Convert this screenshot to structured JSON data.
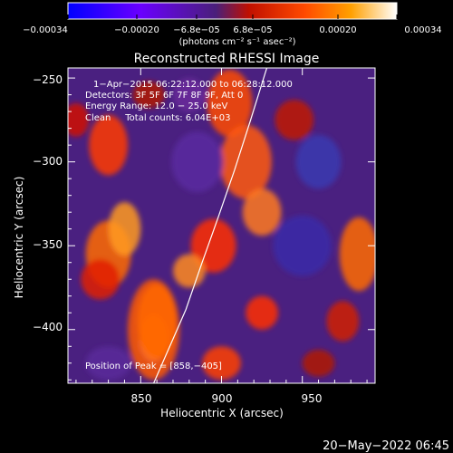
{
  "chart_data": {
    "type": "heatmap",
    "title": "Reconstructed RHESSI Image",
    "xlabel": "Heliocentric X (arcsec)",
    "ylabel": "Heliocentric Y (arcsec)",
    "xlim": [
      805,
      995
    ],
    "ylim": [
      -432,
      -244
    ],
    "x_ticks": [
      850,
      900,
      950
    ],
    "x_tick_labels": [
      "850",
      "900",
      "950"
    ],
    "y_ticks": [
      -250,
      -300,
      -350,
      -400
    ],
    "y_tick_labels": [
      "−250",
      "−300",
      "−350",
      "−400"
    ],
    "colorbar": {
      "range": [
        -0.00034,
        0.00034
      ],
      "tick_labels": [
        "−0.00034",
        "−0.00020",
        "−6.8e−05",
        "6.8e−05",
        "0.00020",
        "0.00034"
      ],
      "unit_label": "(photons cm⁻² s⁻¹ asec⁻²)",
      "colors": [
        "#0000ff",
        "#7a00ff",
        "#5a2090",
        "#ff2a00",
        "#ff9000",
        "#ffffff"
      ]
    },
    "annotations": {
      "time": "1−Apr−2015 06:22:12.000 to 06:28:12.000",
      "detectors": "Detectors: 3F 5F 6F 7F 8F 9F, Att 0",
      "energy": "Energy Range: 12.0 − 25.0 keV",
      "clean": "Clean     Total counts: 6.04E+03",
      "peak": "Position of Peak = [858,−405]"
    },
    "peak": {
      "x": 858,
      "y": -405
    },
    "limb_curve": [
      [
        858,
        -432
      ],
      [
        868,
        -410
      ],
      [
        878,
        -388
      ],
      [
        888,
        -360
      ],
      [
        898,
        -333
      ],
      [
        908,
        -305
      ],
      [
        918,
        -275
      ],
      [
        928,
        -244
      ]
    ]
  },
  "footer_date": "20−May−2022 06:45"
}
